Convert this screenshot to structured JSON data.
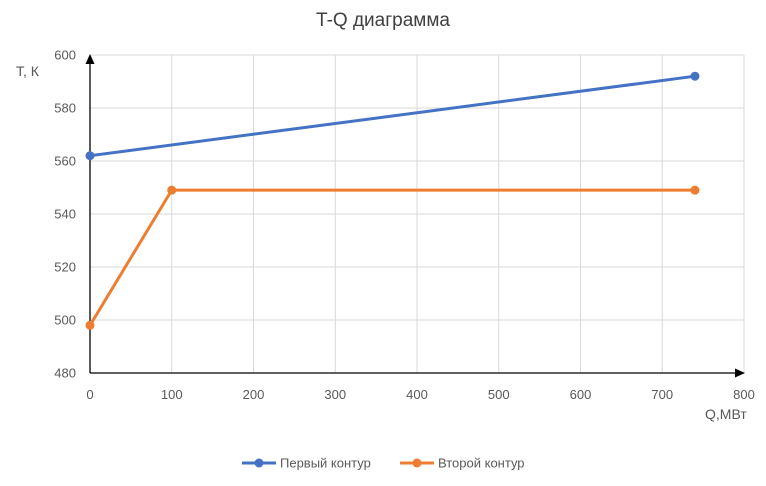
{
  "chart_data": {
    "type": "line",
    "title": "T-Q диаграмма",
    "xlabel": "Q,МВт",
    "ylabel": "T, К",
    "xlim": [
      0,
      800
    ],
    "ylim": [
      480,
      600
    ],
    "x_ticks": [
      "0",
      "100",
      "200",
      "300",
      "400",
      "500",
      "600",
      "700",
      "800"
    ],
    "y_ticks": [
      "480",
      "500",
      "520",
      "540",
      "560",
      "580",
      "600"
    ],
    "grid": true,
    "legend_position": "bottom",
    "series": [
      {
        "name": "Первый контур",
        "color": "#4472C4",
        "points": [
          [
            0,
            562
          ],
          [
            740,
            592
          ]
        ]
      },
      {
        "name": "Второй контур",
        "color": "#ED7D31",
        "points": [
          [
            0,
            498
          ],
          [
            100,
            549
          ],
          [
            740,
            549
          ]
        ]
      }
    ]
  }
}
